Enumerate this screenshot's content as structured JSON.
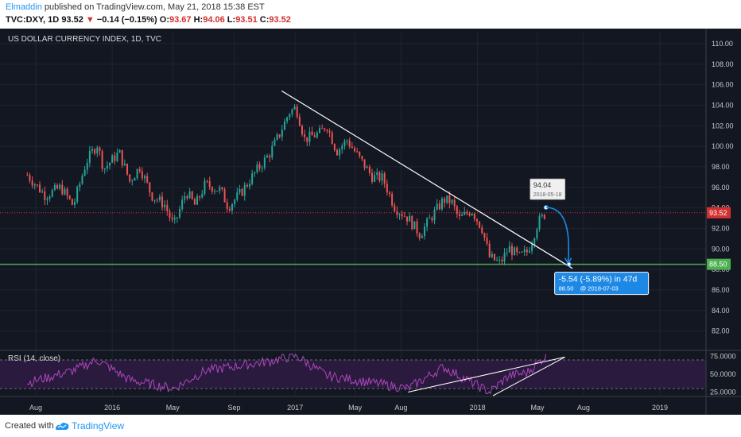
{
  "header": {
    "author": "Elmaddin",
    "published": "published on TradingView.com, May 21, 2018 15:38 EST",
    "symbol": "TVC:DXY, 1D",
    "last": "93.52",
    "arrow": "▼",
    "change": "−0.14 (−0.15%)",
    "o_label": "O:",
    "o_val": "93.67",
    "h_label": "H:",
    "h_val": "94.06",
    "l_label": "L:",
    "l_val": "93.51",
    "c_label": "C:",
    "c_val": "93.52"
  },
  "footer": {
    "created_with": "Created with",
    "brand": "TradingView"
  },
  "colors": {
    "background": "#131722",
    "up_candle": "#26a69a",
    "down_candle": "#ef5350",
    "price_line": "#d32f2f",
    "support_line": "#4caf50",
    "trendline": "#ffffff",
    "rsi_line": "#ab47bc",
    "rsi_band": "#2a1a3d",
    "measure_blue": "#1e88e5"
  },
  "chart_data": [
    {
      "type": "candlestick",
      "title": "US DOLLAR CURRENCY INDEX, 1D, TVC",
      "x_ticks": [
        "Aug",
        "2016",
        "May",
        "Sep",
        "2017",
        "May",
        "Aug",
        "2018",
        "May",
        "Aug",
        "2019"
      ],
      "y_ticks": [
        "82.00",
        "84.00",
        "86.00",
        "88.00",
        "90.00",
        "92.00",
        "94.00",
        "96.00",
        "98.00",
        "100.00",
        "102.00",
        "104.00",
        "106.00",
        "108.00",
        "110.00"
      ],
      "ylim": [
        80.5,
        111.0
      ],
      "approx_close_path": [
        [
          "2015-07-15",
          97.2
        ],
        [
          "2015-08-20",
          95.2
        ],
        [
          "2015-09-20",
          96.0
        ],
        [
          "2015-10-15",
          94.2
        ],
        [
          "2015-11-10",
          98.5
        ],
        [
          "2015-12-02",
          100.2
        ],
        [
          "2015-12-15",
          97.8
        ],
        [
          "2016-01-15",
          99.4
        ],
        [
          "2016-02-05",
          96.6
        ],
        [
          "2016-02-25",
          98.0
        ],
        [
          "2016-03-20",
          95.2
        ],
        [
          "2016-04-15",
          94.3
        ],
        [
          "2016-05-03",
          92.2
        ],
        [
          "2016-05-28",
          95.6
        ],
        [
          "2016-06-15",
          94.2
        ],
        [
          "2016-07-05",
          96.3
        ],
        [
          "2016-08-05",
          95.7
        ],
        [
          "2016-08-20",
          94.1
        ],
        [
          "2016-09-15",
          95.5
        ],
        [
          "2016-10-15",
          97.6
        ],
        [
          "2016-11-10",
          99.2
        ],
        [
          "2016-12-01",
          101.2
        ],
        [
          "2016-12-20",
          103.3
        ],
        [
          "2017-01-03",
          103.8
        ],
        [
          "2017-01-20",
          100.7
        ],
        [
          "2017-02-20",
          101.3
        ],
        [
          "2017-03-05",
          102.1
        ],
        [
          "2017-03-25",
          99.5
        ],
        [
          "2017-04-15",
          100.6
        ],
        [
          "2017-05-10",
          98.8
        ],
        [
          "2017-06-05",
          97.0
        ],
        [
          "2017-06-25",
          96.9
        ],
        [
          "2017-07-20",
          94.0
        ],
        [
          "2017-08-15",
          93.0
        ],
        [
          "2017-09-08",
          91.4
        ],
        [
          "2017-09-25",
          92.7
        ],
        [
          "2017-10-25",
          94.8
        ],
        [
          "2017-11-10",
          94.6
        ],
        [
          "2017-11-25",
          92.9
        ],
        [
          "2017-12-20",
          93.8
        ],
        [
          "2018-01-10",
          92.0
        ],
        [
          "2018-01-25",
          89.2
        ],
        [
          "2018-02-15",
          88.6
        ],
        [
          "2018-03-05",
          90.1
        ],
        [
          "2018-03-25",
          89.2
        ],
        [
          "2018-04-10",
          89.7
        ],
        [
          "2018-04-20",
          90.8
        ],
        [
          "2018-05-01",
          92.5
        ],
        [
          "2018-05-18",
          93.52
        ]
      ],
      "last_price": 93.52,
      "support_level": 88.5,
      "trendline": {
        "start": [
          "2016-12-05",
          105.4
        ],
        "end": [
          "2018-07-10",
          88.1
        ]
      },
      "high_marker": {
        "price": "94.04",
        "date": "2018-05-18"
      },
      "measure": {
        "text": "-5.54 (-5.89%) in 47d",
        "target": "88.50",
        "target_date": "@ 2018-07-03"
      }
    },
    {
      "type": "line",
      "title": "RSI (14, close)",
      "y_ticks": [
        "25.0000",
        "50.0000",
        "75.0000"
      ],
      "levels": [
        70,
        30
      ],
      "ylim": [
        20,
        80
      ],
      "approx_path": [
        [
          "2015-07-15",
          38
        ],
        [
          "2015-10-15",
          55
        ],
        [
          "2015-12-02",
          70
        ],
        [
          "2016-02-05",
          42
        ],
        [
          "2016-05-03",
          30
        ],
        [
          "2016-07-05",
          55
        ],
        [
          "2016-11-10",
          68
        ],
        [
          "2017-01-03",
          76
        ],
        [
          "2017-03-05",
          48
        ],
        [
          "2017-06-05",
          38
        ],
        [
          "2017-08-15",
          30
        ],
        [
          "2017-10-25",
          60
        ],
        [
          "2018-01-25",
          25
        ],
        [
          "2018-03-05",
          48
        ],
        [
          "2018-04-10",
          52
        ],
        [
          "2018-05-18",
          76
        ]
      ]
    }
  ]
}
